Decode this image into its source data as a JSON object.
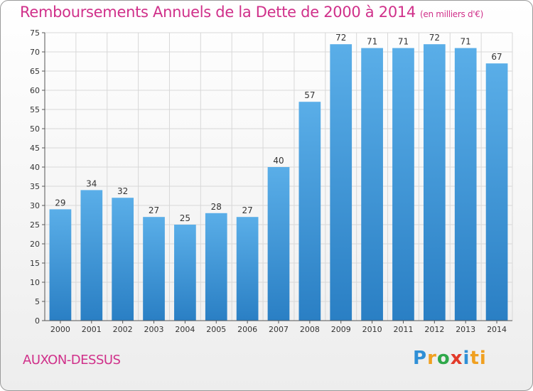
{
  "page": {
    "title": "Remboursements Annuels de la Dette de 2000 à 2014",
    "unit_note": "(en milliers d'€)",
    "commune": "AUXON-DESSUS",
    "logo_letters": [
      "P",
      "r",
      "o",
      "x",
      "i",
      "ti"
    ]
  },
  "colors": {
    "title": "#d0308a",
    "bar_top": "#5aaee8",
    "bar_bottom": "#2a7fc4",
    "grid": "#d8d8d8"
  },
  "chart_data": {
    "type": "bar",
    "title": "Remboursements Annuels de la Dette de 2000 à 2014",
    "subtitle": "(en milliers d'€)",
    "xlabel": "",
    "ylabel": "",
    "categories": [
      "2000",
      "2001",
      "2002",
      "2003",
      "2004",
      "2005",
      "2006",
      "2007",
      "2008",
      "2009",
      "2010",
      "2011",
      "2012",
      "2013",
      "2014"
    ],
    "values": [
      29,
      34,
      32,
      27,
      25,
      28,
      27,
      40,
      57,
      72,
      71,
      71,
      72,
      71,
      67
    ],
    "ylim": [
      0,
      75
    ],
    "yticks": [
      0,
      5,
      10,
      15,
      20,
      25,
      30,
      35,
      40,
      45,
      50,
      55,
      60,
      65,
      70,
      75
    ],
    "grid": true,
    "data_labels": true
  }
}
